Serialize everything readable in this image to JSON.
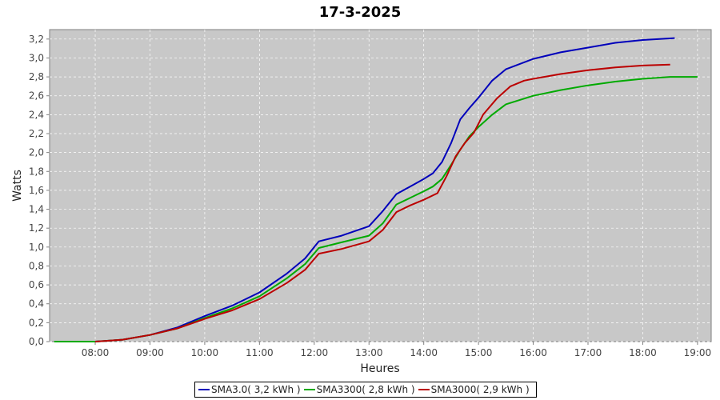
{
  "chart_data": {
    "type": "line",
    "title": "17-3-2025",
    "xlabel": "Heures",
    "ylabel": "Watts",
    "x_ticks": [
      "08:00",
      "09:00",
      "10:00",
      "11:00",
      "12:00",
      "13:00",
      "14:00",
      "15:00",
      "16:00",
      "17:00",
      "18:00",
      "19:00"
    ],
    "y_ticks": [
      "0,0",
      "0,2",
      "0,4",
      "0,6",
      "0,8",
      "1,0",
      "1,2",
      "1,4",
      "1,6",
      "1,8",
      "2,0",
      "2,2",
      "2,4",
      "2,6",
      "2,8",
      "3,0",
      "3,2"
    ],
    "xlim": [
      "07:10",
      "19:15"
    ],
    "ylim": [
      0,
      3.3
    ],
    "grid": true,
    "legend_position": "bottom",
    "series": [
      {
        "name": "SMA3.0( 3,2 kWh )",
        "color": "#0000bb",
        "x": [
          "08:00",
          "08:30",
          "09:00",
          "09:30",
          "10:00",
          "10:30",
          "11:00",
          "11:30",
          "11:50",
          "12:05",
          "12:30",
          "13:00",
          "13:15",
          "13:30",
          "13:45",
          "14:00",
          "14:10",
          "14:20",
          "14:30",
          "14:40",
          "14:50",
          "15:00",
          "15:15",
          "15:30",
          "16:00",
          "16:30",
          "17:00",
          "17:30",
          "18:00",
          "18:35"
        ],
        "values": [
          0.0,
          0.02,
          0.07,
          0.15,
          0.27,
          0.38,
          0.52,
          0.72,
          0.88,
          1.06,
          1.12,
          1.22,
          1.38,
          1.56,
          1.64,
          1.72,
          1.78,
          1.9,
          2.1,
          2.35,
          2.47,
          2.58,
          2.76,
          2.88,
          2.99,
          3.06,
          3.11,
          3.16,
          3.19,
          3.21
        ]
      },
      {
        "name": "SMA3300( 2,8 kWh )",
        "color": "#00aa00",
        "x": [
          "07:15",
          "07:40",
          "08:00",
          "08:30",
          "09:00",
          "09:30",
          "10:00",
          "10:30",
          "11:00",
          "11:30",
          "11:50",
          "12:05",
          "12:30",
          "13:00",
          "13:15",
          "13:30",
          "13:45",
          "14:00",
          "14:10",
          "14:20",
          "14:30",
          "14:40",
          "14:50",
          "15:00",
          "15:15",
          "15:30",
          "16:00",
          "16:30",
          "17:00",
          "17:30",
          "18:00",
          "18:30",
          "19:00"
        ],
        "values": [
          0.0,
          0.0,
          0.0,
          0.02,
          0.07,
          0.14,
          0.25,
          0.35,
          0.48,
          0.67,
          0.82,
          0.99,
          1.05,
          1.12,
          1.25,
          1.45,
          1.52,
          1.59,
          1.64,
          1.72,
          1.87,
          2.03,
          2.17,
          2.27,
          2.4,
          2.51,
          2.6,
          2.66,
          2.71,
          2.75,
          2.78,
          2.8,
          2.8
        ]
      },
      {
        "name": "SMA3000( 2,9 kWh )",
        "color": "#bb0000",
        "x": [
          "08:00",
          "08:30",
          "09:00",
          "09:30",
          "10:00",
          "10:30",
          "11:00",
          "11:30",
          "11:50",
          "12:05",
          "12:30",
          "13:00",
          "13:15",
          "13:30",
          "13:45",
          "14:00",
          "14:15",
          "14:25",
          "14:35",
          "14:45",
          "14:55",
          "15:05",
          "15:20",
          "15:35",
          "15:50",
          "16:00",
          "16:30",
          "17:00",
          "17:30",
          "18:00",
          "18:30"
        ],
        "values": [
          0.0,
          0.02,
          0.07,
          0.14,
          0.24,
          0.33,
          0.45,
          0.62,
          0.76,
          0.93,
          0.98,
          1.06,
          1.18,
          1.37,
          1.44,
          1.5,
          1.57,
          1.75,
          1.96,
          2.1,
          2.21,
          2.4,
          2.57,
          2.7,
          2.76,
          2.78,
          2.83,
          2.87,
          2.9,
          2.92,
          2.93
        ]
      }
    ]
  }
}
